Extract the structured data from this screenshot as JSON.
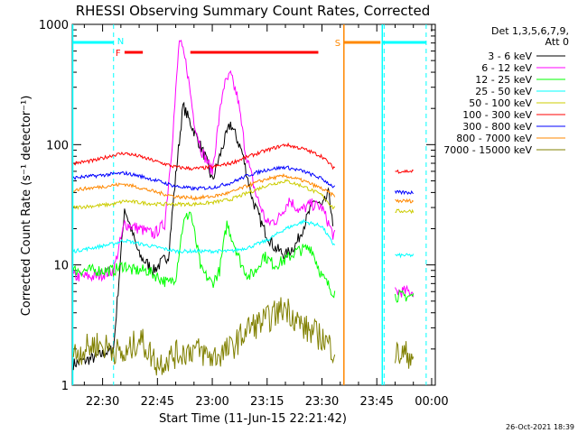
{
  "chart_data": {
    "type": "line",
    "title": "RHESSI Observing Summary Count Rates, Corrected",
    "xlabel": "Start Time (11-Jun-15 22:21:42)",
    "ylabel": "Corrected Count Rate (s⁻¹ detector⁻¹)",
    "y_scale": "log",
    "ylim": [
      1,
      1000
    ],
    "xlim": [
      "22:21:42",
      "00:01:00"
    ],
    "x_ticks": [
      "22:30",
      "22:45",
      "23:00",
      "23:15",
      "23:30",
      "23:45",
      "00:00"
    ],
    "y_ticks": [
      "1",
      "10",
      "100",
      "1000"
    ],
    "legend_header": [
      "Det 1,3,5,6,7,9,",
      "Att 0"
    ],
    "legend_position": "top-right",
    "timestamp": "26-Oct-2021 18:39",
    "series": [
      {
        "name": "3 - 6 keV",
        "color": "#000000",
        "x": [
          "22:22",
          "22:28",
          "22:33",
          "22:36",
          "22:40",
          "22:44",
          "22:48",
          "22:50",
          "22:52",
          "22:55",
          "22:58",
          "23:00",
          "23:03",
          "23:05",
          "23:08",
          "23:11",
          "23:14",
          "23:17",
          "23:20",
          "23:23",
          "23:26",
          "23:28",
          "23:30",
          "23:32",
          "23:33"
        ],
        "values": [
          1.5,
          1.7,
          2,
          30,
          12,
          9,
          12,
          55,
          210,
          130,
          80,
          50,
          100,
          150,
          90,
          35,
          20,
          14,
          12,
          15,
          25,
          35,
          30,
          40,
          20
        ]
      },
      {
        "name": "6 - 12 keV",
        "color": "#ff00ff",
        "x": [
          "22:22",
          "22:28",
          "22:33",
          "22:36",
          "22:40",
          "22:44",
          "22:47",
          "22:49",
          "22:51",
          "22:53",
          "22:55",
          "22:57",
          "23:00",
          "23:03",
          "23:05",
          "23:07",
          "23:09",
          "23:12",
          "23:15",
          "23:18",
          "23:21",
          "23:24",
          "23:27",
          "23:30",
          "23:33",
          "23:50",
          "23:55"
        ],
        "values": [
          8,
          8,
          9,
          22,
          20,
          18,
          22,
          100,
          750,
          450,
          160,
          90,
          60,
          300,
          380,
          240,
          90,
          38,
          22,
          24,
          35,
          28,
          32,
          30,
          18,
          6,
          6
        ]
      },
      {
        "name": "12 - 25 keV",
        "color": "#00ff00",
        "x": [
          "22:22",
          "22:28",
          "22:33",
          "22:36",
          "22:38",
          "22:42",
          "22:45",
          "22:48",
          "22:50",
          "22:52",
          "22:54",
          "22:57",
          "23:00",
          "23:02",
          "23:04",
          "23:06",
          "23:08",
          "23:10",
          "23:12",
          "23:14",
          "23:17",
          "23:20",
          "23:23",
          "23:27",
          "23:30",
          "23:33",
          "23:50",
          "23:55"
        ],
        "values": [
          9,
          9,
          9,
          10,
          9,
          9,
          8,
          7,
          8,
          22,
          28,
          9,
          7,
          9,
          22,
          15,
          10,
          8,
          9,
          12,
          10,
          11,
          13,
          14,
          8,
          6,
          5.5,
          5.5
        ]
      },
      {
        "name": "25 - 50 keV",
        "color": "#00ffff",
        "x": [
          "22:22",
          "22:28",
          "22:33",
          "22:36",
          "22:40",
          "22:45",
          "22:50",
          "22:55",
          "23:00",
          "23:05",
          "23:10",
          "23:15",
          "23:20",
          "23:25",
          "23:30",
          "23:33",
          "23:50",
          "23:55"
        ],
        "values": [
          13,
          14,
          15,
          16,
          15,
          14,
          13,
          13,
          13,
          13,
          14,
          16,
          20,
          23,
          21,
          15,
          12,
          12
        ]
      },
      {
        "name": "50 - 100 keV",
        "color": "#cccc00",
        "x": [
          "22:22",
          "22:28",
          "22:33",
          "22:36",
          "22:40",
          "22:45",
          "22:50",
          "22:55",
          "23:00",
          "23:05",
          "23:10",
          "23:15",
          "23:20",
          "23:25",
          "23:30",
          "23:33",
          "23:50",
          "23:55"
        ],
        "values": [
          30,
          31,
          32,
          34,
          33,
          32,
          32,
          32,
          33,
          35,
          40,
          46,
          50,
          45,
          38,
          30,
          28,
          28
        ]
      },
      {
        "name": "100 - 300 keV",
        "color": "#ff0000",
        "x": [
          "22:22",
          "22:28",
          "22:33",
          "22:36",
          "22:40",
          "22:45",
          "22:50",
          "22:55",
          "23:00",
          "23:05",
          "23:10",
          "23:15",
          "23:20",
          "23:25",
          "23:30",
          "23:33",
          "23:50",
          "23:55"
        ],
        "values": [
          70,
          74,
          82,
          85,
          80,
          72,
          65,
          63,
          65,
          70,
          80,
          90,
          100,
          92,
          80,
          65,
          60,
          60
        ]
      },
      {
        "name": "300 - 800 keV",
        "color": "#0000ff",
        "x": [
          "22:22",
          "22:28",
          "22:33",
          "22:36",
          "22:40",
          "22:45",
          "22:50",
          "22:55",
          "23:00",
          "23:05",
          "23:10",
          "23:15",
          "23:20",
          "23:25",
          "23:30",
          "23:33",
          "23:50",
          "23:55"
        ],
        "values": [
          53,
          55,
          57,
          58,
          55,
          50,
          45,
          43,
          44,
          48,
          56,
          62,
          65,
          60,
          52,
          45,
          40,
          40
        ]
      },
      {
        "name": "800 - 7000 keV",
        "color": "#ff8800",
        "x": [
          "22:22",
          "22:28",
          "22:33",
          "22:36",
          "22:40",
          "22:45",
          "22:50",
          "22:55",
          "23:00",
          "23:05",
          "23:10",
          "23:15",
          "23:20",
          "23:25",
          "23:30",
          "23:33",
          "23:50",
          "23:55"
        ],
        "values": [
          42,
          44,
          46,
          47,
          44,
          40,
          37,
          36,
          37,
          40,
          46,
          52,
          55,
          50,
          43,
          38,
          34,
          34
        ]
      },
      {
        "name": "7000 - 15000 keV",
        "color": "#808000",
        "x": [
          "22:22",
          "22:28",
          "22:33",
          "22:36",
          "22:40",
          "22:45",
          "22:50",
          "22:55",
          "23:00",
          "23:05",
          "23:10",
          "23:15",
          "23:20",
          "23:25",
          "23:30",
          "23:33",
          "23:50",
          "23:55"
        ],
        "values": [
          1.8,
          2.2,
          2,
          1.7,
          2.5,
          1.5,
          1.8,
          2,
          1.7,
          2,
          3,
          3.5,
          4.5,
          3,
          2.5,
          2,
          1.8,
          1.8
        ]
      }
    ],
    "flags": [
      {
        "label": "N",
        "color": "#00ffff",
        "start": "22:21:42",
        "end": "22:33:00"
      },
      {
        "label": "F",
        "color": "#ff0000",
        "start": "22:36:00",
        "end": "22:41:00"
      },
      {
        "label": "",
        "color": "#ff0000",
        "start": "22:54:00",
        "end": "23:29:00"
      },
      {
        "label": "S",
        "color": "#ff8800",
        "start": "23:36:00",
        "end": "23:46:00"
      },
      {
        "label": "",
        "color": "#00ffff",
        "start": "23:46:30",
        "end": "23:58:30"
      }
    ],
    "data_gap": [
      "23:33:30",
      "23:50:00"
    ],
    "dashed_markers": [
      "22:33:00",
      "23:47:00",
      "23:58:30"
    ],
    "solid_markers": [
      {
        "time": "22:21:50",
        "color": "#00ffff"
      },
      {
        "time": "23:36:00",
        "color": "#ff8800"
      },
      {
        "time": "23:46:30",
        "color": "#00ffff"
      }
    ]
  }
}
